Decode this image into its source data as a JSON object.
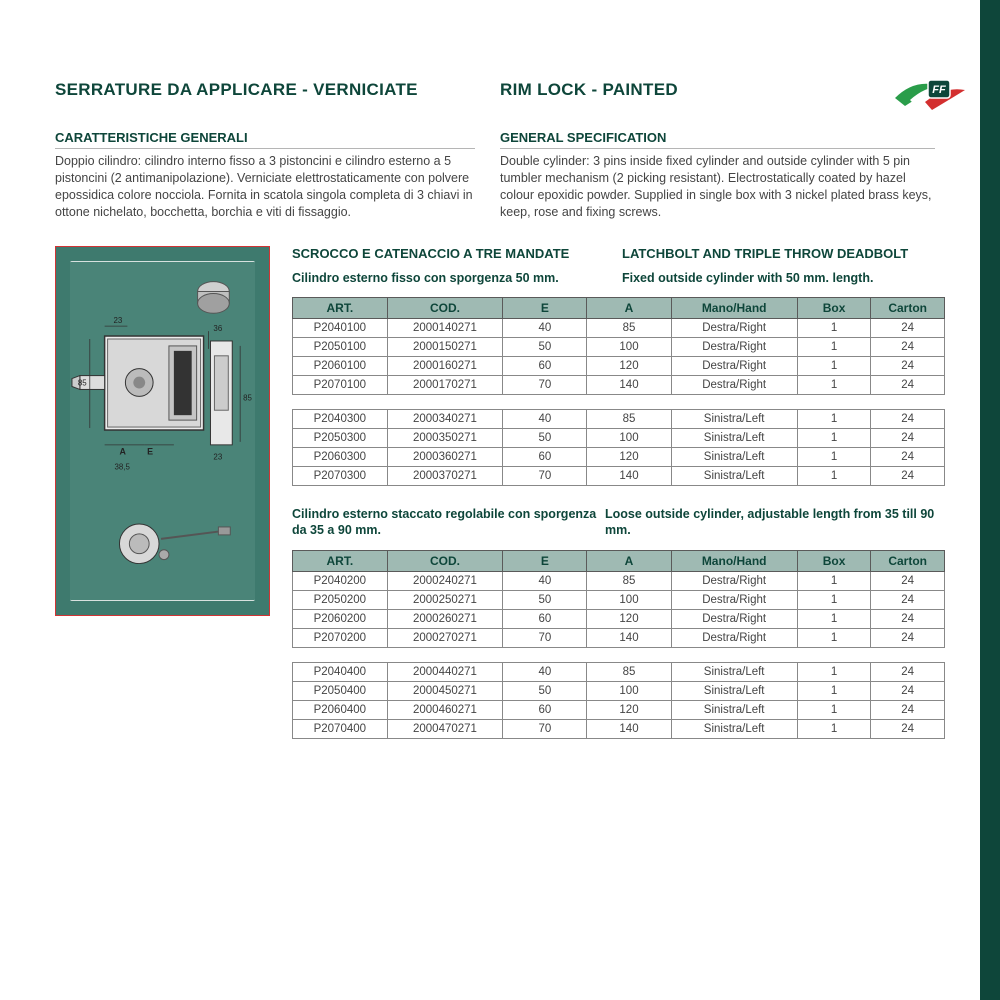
{
  "colors": {
    "brand_dark": "#0e463a",
    "header_bg": "#9fbab3",
    "diagram_bg": "#3e7a6e",
    "diagram_border": "#d13434",
    "text_body": "#444444",
    "border": "#888888"
  },
  "title_it": "SERRATURE DA APPLICARE - VERNICIATE",
  "title_en": "RIM LOCK - PAINTED",
  "spec_head_it": "CARATTERISTICHE GENERALI",
  "spec_body_it": "Doppio cilindro: cilindro interno fisso a 3 pistoncini e cilindro esterno a 5 pistoncini (2 antimanipolazione). Verniciate elettrostaticamente con polvere epossidica colore nocciola. Fornita in scatola singola completa di 3 chiavi in ottone nichelato, bocchetta, borchia e viti di fissaggio.",
  "spec_head_en": "GENERAL SPECIFICATION",
  "spec_body_en": "Double cylinder: 3 pins inside fixed cylinder and outside cylinder with 5 pin tumbler mechanism (2 picking resistant). Electrostatically coated by hazel colour epoxidic powder. Supplied in single box with 3 nickel plated brass keys, keep, rose and fixing screws.",
  "section1": {
    "head_it": "SCROCCO E CATENACCIO A TRE MANDATE",
    "head_en": "LATCHBOLT AND TRIPLE THROW DEADBOLT",
    "sub_it": "Cilindro esterno fisso con sporgenza 50 mm.",
    "sub_en": "Fixed outside cylinder with 50 mm. length."
  },
  "section2": {
    "sub_it": "Cilindro esterno staccato regolabile con sporgenza da 35 a 90 mm.",
    "sub_en": "Loose outside cylinder, adjustable length from 35 till 90 mm."
  },
  "columns": [
    "ART.",
    "COD.",
    "E",
    "A",
    "Mano/Hand",
    "Box",
    "Carton"
  ],
  "table1a": [
    [
      "P2040100",
      "2000140271",
      "40",
      "85",
      "Destra/Right",
      "1",
      "24"
    ],
    [
      "P2050100",
      "2000150271",
      "50",
      "100",
      "Destra/Right",
      "1",
      "24"
    ],
    [
      "P2060100",
      "2000160271",
      "60",
      "120",
      "Destra/Right",
      "1",
      "24"
    ],
    [
      "P2070100",
      "2000170271",
      "70",
      "140",
      "Destra/Right",
      "1",
      "24"
    ]
  ],
  "table1b": [
    [
      "P2040300",
      "2000340271",
      "40",
      "85",
      "Sinistra/Left",
      "1",
      "24"
    ],
    [
      "P2050300",
      "2000350271",
      "50",
      "100",
      "Sinistra/Left",
      "1",
      "24"
    ],
    [
      "P2060300",
      "2000360271",
      "60",
      "120",
      "Sinistra/Left",
      "1",
      "24"
    ],
    [
      "P2070300",
      "2000370271",
      "70",
      "140",
      "Sinistra/Left",
      "1",
      "24"
    ]
  ],
  "table2a": [
    [
      "P2040200",
      "2000240271",
      "40",
      "85",
      "Destra/Right",
      "1",
      "24"
    ],
    [
      "P2050200",
      "2000250271",
      "50",
      "100",
      "Destra/Right",
      "1",
      "24"
    ],
    [
      "P2060200",
      "2000260271",
      "60",
      "120",
      "Destra/Right",
      "1",
      "24"
    ],
    [
      "P2070200",
      "2000270271",
      "70",
      "140",
      "Destra/Right",
      "1",
      "24"
    ]
  ],
  "table2b": [
    [
      "P2040400",
      "2000440271",
      "40",
      "85",
      "Sinistra/Left",
      "1",
      "24"
    ],
    [
      "P2050400",
      "2000450271",
      "50",
      "100",
      "Sinistra/Left",
      "1",
      "24"
    ],
    [
      "P2060400",
      "2000460271",
      "60",
      "120",
      "Sinistra/Left",
      "1",
      "24"
    ],
    [
      "P2070400",
      "2000470271",
      "70",
      "140",
      "Sinistra/Left",
      "1",
      "24"
    ]
  ],
  "diagram_dims": [
    "23",
    "36",
    "85",
    "A",
    "E",
    "38,5",
    "23",
    "85"
  ]
}
